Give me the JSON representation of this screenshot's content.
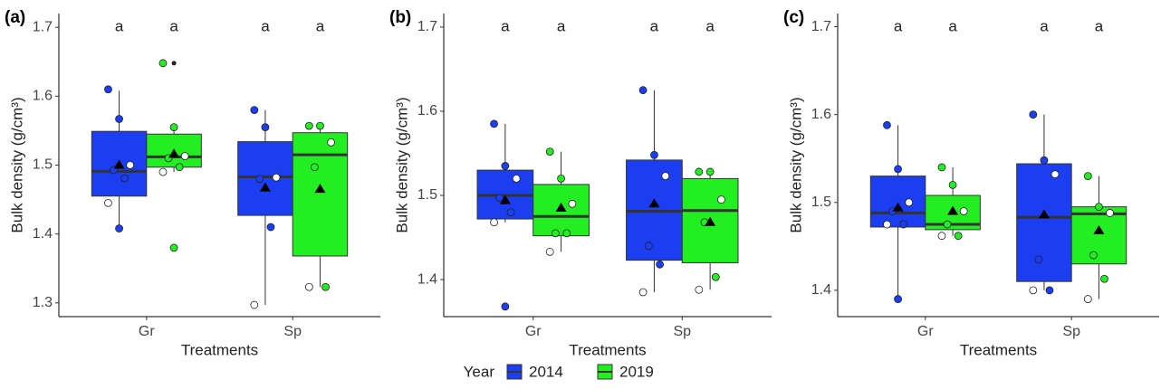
{
  "legend_title": "Year",
  "chart_data": [
    {
      "type": "box",
      "panel_label": "(a)",
      "y_label": "Bulk density (g/cm³)",
      "x_label": "Treatments",
      "categories": [
        "Gr",
        "Sp"
      ],
      "ylim": [
        1.28,
        1.72
      ],
      "yticks": [
        1.3,
        1.4,
        1.5,
        1.6,
        1.7
      ],
      "series": [
        {
          "name": "2014",
          "color": "#1a3ef0",
          "letters": [
            "a",
            "a"
          ],
          "boxes": [
            {
              "min": 1.408,
              "q1": 1.455,
              "median": 1.491,
              "q3": 1.549,
              "max": 1.608,
              "mean": 1.5,
              "points": [
                1.61,
                1.567,
                1.5,
                1.493,
                1.481,
                1.445,
                1.408
              ],
              "outliers": []
            },
            {
              "min": 1.297,
              "q1": 1.427,
              "median": 1.483,
              "q3": 1.534,
              "max": 1.58,
              "mean": 1.467,
              "points": [
                1.58,
                1.555,
                1.482,
                1.48,
                1.41,
                1.297
              ],
              "outliers": []
            }
          ]
        },
        {
          "name": "2019",
          "color": "#22ee22",
          "letters": [
            "a",
            "a"
          ],
          "boxes": [
            {
              "min": 1.49,
              "q1": 1.497,
              "median": 1.512,
              "q3": 1.545,
              "max": 1.555,
              "mean": 1.516,
              "points": [
                1.648,
                1.555,
                1.513,
                1.51,
                1.497,
                1.49,
                1.38
              ],
              "outliers": [
                1.648,
                1.38
              ]
            },
            {
              "min": 1.323,
              "q1": 1.368,
              "median": 1.515,
              "q3": 1.547,
              "max": 1.558,
              "mean": 1.465,
              "points": [
                1.557,
                1.557,
                1.533,
                1.497,
                1.323,
                1.323
              ],
              "outliers": []
            }
          ]
        }
      ]
    },
    {
      "type": "box",
      "panel_label": "(b)",
      "y_label": "Bulk density (g/cm³)",
      "x_label": "Treatments",
      "categories": [
        "Gr",
        "Sp"
      ],
      "ylim": [
        1.356,
        1.716
      ],
      "yticks": [
        1.4,
        1.5,
        1.6,
        1.7
      ],
      "series": [
        {
          "name": "2014",
          "color": "#1a3ef0",
          "letters": [
            "a",
            "a"
          ],
          "boxes": [
            {
              "min": 1.468,
              "q1": 1.472,
              "median": 1.5,
              "q3": 1.53,
              "max": 1.585,
              "mean": 1.494,
              "points": [
                1.585,
                1.535,
                1.52,
                1.497,
                1.48,
                1.468,
                1.368
              ],
              "outliers": [
                1.368
              ]
            },
            {
              "min": 1.385,
              "q1": 1.423,
              "median": 1.481,
              "q3": 1.542,
              "max": 1.625,
              "mean": 1.49,
              "points": [
                1.625,
                1.548,
                1.523,
                1.44,
                1.418,
                1.385
              ],
              "outliers": []
            }
          ]
        },
        {
          "name": "2019",
          "color": "#22ee22",
          "letters": [
            "a",
            "a"
          ],
          "boxes": [
            {
              "min": 1.433,
              "q1": 1.452,
              "median": 1.475,
              "q3": 1.513,
              "max": 1.552,
              "mean": 1.485,
              "points": [
                1.552,
                1.52,
                1.49,
                1.455,
                1.455,
                1.433
              ],
              "outliers": []
            },
            {
              "min": 1.388,
              "q1": 1.42,
              "median": 1.482,
              "q3": 1.52,
              "max": 1.528,
              "mean": 1.468,
              "points": [
                1.528,
                1.528,
                1.495,
                1.468,
                1.403,
                1.388
              ],
              "outliers": []
            }
          ]
        }
      ]
    },
    {
      "type": "box",
      "panel_label": "(c)",
      "y_label": "Bulk density (g/cm³)",
      "x_label": "Treatments",
      "categories": [
        "Gr",
        "Sp"
      ],
      "ylim": [
        1.37,
        1.715
      ],
      "yticks": [
        1.4,
        1.5,
        1.6,
        1.7
      ],
      "series": [
        {
          "name": "2014",
          "color": "#1a3ef0",
          "letters": [
            "a",
            "a"
          ],
          "boxes": [
            {
              "min": 1.39,
              "q1": 1.472,
              "median": 1.488,
              "q3": 1.53,
              "max": 1.588,
              "mean": 1.494,
              "points": [
                1.588,
                1.538,
                1.5,
                1.49,
                1.475,
                1.475,
                1.39
              ],
              "outliers": []
            },
            {
              "min": 1.4,
              "q1": 1.41,
              "median": 1.483,
              "q3": 1.544,
              "max": 1.6,
              "mean": 1.486,
              "points": [
                1.6,
                1.548,
                1.532,
                1.435,
                1.4,
                1.4
              ],
              "outliers": []
            }
          ]
        },
        {
          "name": "2019",
          "color": "#22ee22",
          "letters": [
            "a",
            "a"
          ],
          "boxes": [
            {
              "min": 1.462,
              "q1": 1.469,
              "median": 1.475,
              "q3": 1.508,
              "max": 1.54,
              "mean": 1.49,
              "points": [
                1.54,
                1.52,
                1.49,
                1.475,
                1.462,
                1.462
              ],
              "outliers": []
            },
            {
              "min": 1.39,
              "q1": 1.43,
              "median": 1.487,
              "q3": 1.495,
              "max": 1.53,
              "mean": 1.468,
              "points": [
                1.53,
                1.495,
                1.488,
                1.44,
                1.413,
                1.39
              ],
              "outliers": []
            }
          ]
        }
      ]
    }
  ]
}
